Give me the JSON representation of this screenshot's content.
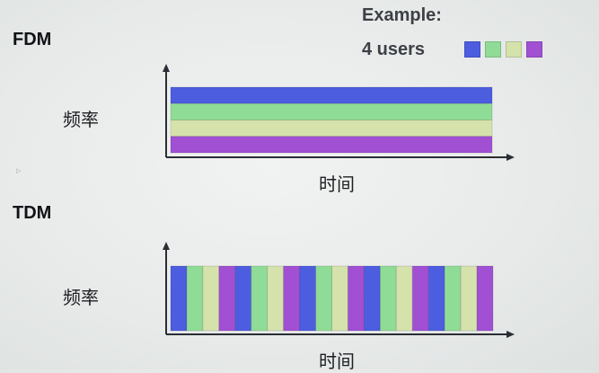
{
  "example": {
    "title": "Example:",
    "users": "4 users",
    "colors": [
      "#4d5de0",
      "#8fdc97",
      "#d6e2ac",
      "#a150d4"
    ]
  },
  "fdm": {
    "title": "FDM",
    "y_label": "频率",
    "x_label": "时间"
  },
  "tdm": {
    "title": "TDM",
    "y_label": "频率",
    "x_label": "时间",
    "slot_user_sequence": [
      0,
      1,
      2,
      3,
      0,
      1,
      2,
      3,
      0,
      1,
      2,
      3,
      0,
      1,
      2,
      3,
      0,
      1,
      2,
      3
    ]
  }
}
